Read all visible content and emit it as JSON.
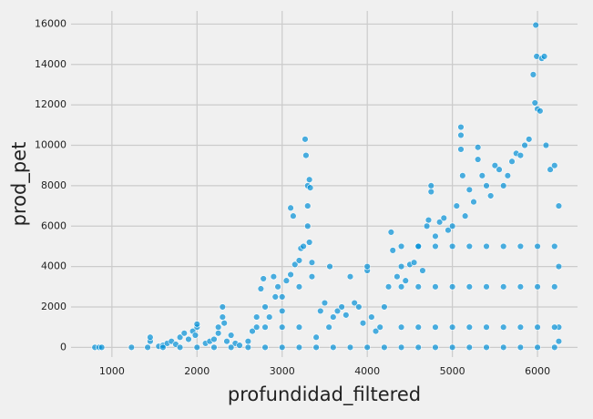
{
  "chart_data": {
    "type": "scatter",
    "x_label": "profundidad_filtered",
    "y_label": "prod_pet",
    "color": "#008fd5",
    "grid": true,
    "xlim": [
      520,
      6470
    ],
    "ylim": [
      -480,
      16650
    ],
    "xticks": [
      1000,
      2000,
      3000,
      4000,
      5000,
      6000
    ],
    "yticks": [
      0,
      2000,
      4000,
      6000,
      8000,
      10000,
      12000,
      14000,
      16000
    ],
    "x": [
      800,
      850,
      880,
      1230,
      1420,
      1450,
      1450,
      1550,
      1600,
      1650,
      1700,
      1750,
      1800,
      1850,
      1900,
      1950,
      2000,
      2000,
      1980,
      2100,
      2150,
      2200,
      2250,
      2250,
      2300,
      2300,
      2320,
      2350,
      2400,
      2450,
      2500,
      2600,
      2650,
      2700,
      2700,
      2750,
      2780,
      2800,
      2850,
      2900,
      2920,
      2950,
      3000,
      3000,
      3050,
      3100,
      3150,
      3200,
      3200,
      3220,
      3250,
      3270,
      3280,
      3300,
      3300,
      3320,
      3330,
      3300,
      3320,
      3350,
      3100,
      3130,
      3350,
      3400,
      3450,
      3500,
      3550,
      3560,
      3600,
      3650,
      3700,
      3750,
      3800,
      3850,
      3900,
      3950,
      4000,
      4000,
      4050,
      4100,
      4150,
      4200,
      4250,
      4280,
      4300,
      4350,
      4400,
      4450,
      4500,
      4550,
      4600,
      4650,
      4700,
      4750,
      4750,
      4720,
      4800,
      4850,
      4900,
      4950,
      5000,
      5050,
      5100,
      5100,
      5100,
      5120,
      5150,
      5200,
      5250,
      5300,
      5300,
      5350,
      5400,
      5450,
      5500,
      5550,
      5600,
      5650,
      5700,
      5750,
      5800,
      5850,
      5900,
      5950,
      5970,
      5980,
      5990,
      6000,
      6050,
      6080,
      6030,
      6100,
      6150,
      6200,
      6250,
      6250,
      6250,
      6250,
      1600,
      1800,
      2000,
      2200,
      2400,
      2600,
      2800,
      3000,
      3200,
      3400,
      3600,
      3800,
      4000,
      4200,
      4400,
      4600,
      4800,
      5000,
      5200,
      5400,
      5600,
      5800,
      6000,
      6200,
      4400,
      4600,
      4800,
      5000,
      5200,
      5400,
      5600,
      5800,
      6000,
      6200,
      4400,
      4600,
      4800,
      5000,
      5200,
      5400,
      5600,
      5800,
      6000,
      6200,
      4400,
      4600,
      4800,
      5000,
      5200,
      5400,
      5600,
      5800,
      6000,
      6200,
      2800,
      3000,
      3200
    ],
    "y": [
      0,
      0,
      0,
      0,
      0,
      300,
      500,
      50,
      100,
      200,
      300,
      150,
      500,
      700,
      400,
      800,
      1000,
      1150,
      600,
      200,
      300,
      400,
      700,
      1000,
      1500,
      2000,
      1200,
      300,
      600,
      200,
      100,
      300,
      800,
      1000,
      1500,
      2900,
      3400,
      2000,
      1500,
      3500,
      2500,
      3000,
      2500,
      1800,
      3300,
      3600,
      4100,
      4300,
      3000,
      4900,
      5000,
      10300,
      9500,
      8000,
      7000,
      8300,
      7900,
      6000,
      5200,
      4200,
      6900,
      6500,
      3500,
      500,
      1800,
      2200,
      1000,
      4000,
      1500,
      1800,
      2000,
      1600,
      3500,
      2200,
      2000,
      1200,
      3800,
      4000,
      1500,
      800,
      1000,
      2000,
      3000,
      5700,
      4800,
      3500,
      4000,
      3300,
      4100,
      4200,
      5000,
      3800,
      6000,
      8000,
      7700,
      6300,
      5500,
      6200,
      6400,
      5800,
      6000,
      7000,
      10900,
      10500,
      9800,
      8500,
      6500,
      7800,
      7200,
      9900,
      9300,
      8500,
      8000,
      7500,
      9000,
      8800,
      8000,
      8500,
      9200,
      9600,
      9500,
      10000,
      10300,
      13500,
      12100,
      15950,
      14400,
      11800,
      14300,
      14400,
      11700,
      10000,
      8800,
      9000,
      7000,
      4000,
      1000,
      300,
      0,
      0,
      0,
      0,
      0,
      0,
      0,
      0,
      0,
      0,
      0,
      0,
      0,
      0,
      0,
      0,
      0,
      0,
      0,
      0,
      0,
      0,
      0,
      0,
      1000,
      1000,
      1000,
      1000,
      1000,
      1000,
      1000,
      1000,
      1000,
      1000,
      3000,
      3000,
      3000,
      3000,
      3000,
      3000,
      3000,
      3000,
      3000,
      3000,
      5000,
      5000,
      5000,
      5000,
      5000,
      5000,
      5000,
      5000,
      5000,
      5000,
      1000,
      1000,
      1000
    ]
  }
}
